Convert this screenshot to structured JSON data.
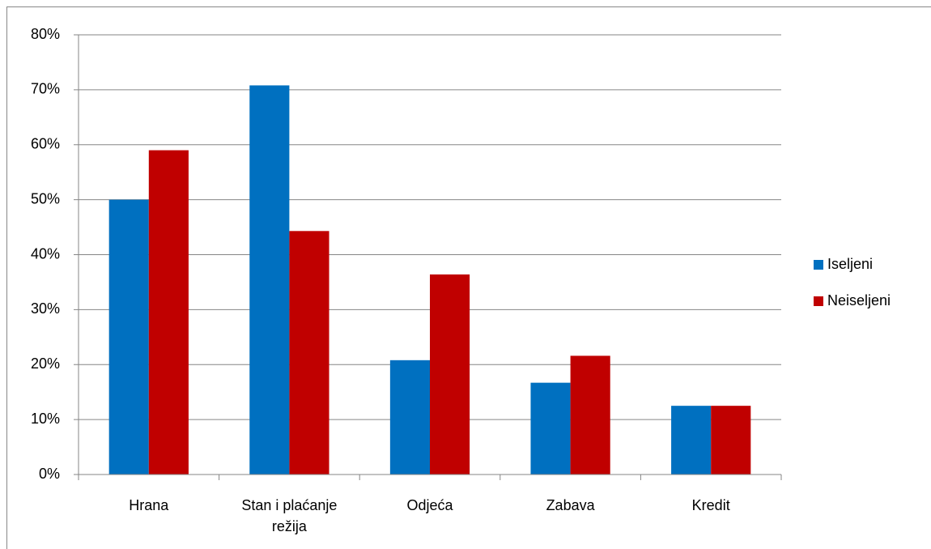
{
  "chart_data": {
    "type": "bar",
    "categories": [
      "Hrana",
      "Stan i plaćanje režija",
      "Odjeća",
      "Zabava",
      "Kredit"
    ],
    "series": [
      {
        "name": "Iseljeni",
        "color": "#0070c0",
        "values": [
          50,
          70.8,
          20.8,
          16.7,
          12.5
        ]
      },
      {
        "name": "Neiseljeni",
        "color": "#c00000",
        "values": [
          59,
          44.3,
          36.4,
          21.6,
          12.5
        ]
      }
    ],
    "ylim": [
      0,
      80
    ],
    "yticks": [
      {
        "value": 0,
        "label": "0%"
      },
      {
        "value": 10,
        "label": "10%"
      },
      {
        "value": 20,
        "label": "20%"
      },
      {
        "value": 30,
        "label": "30%"
      },
      {
        "value": 40,
        "label": "40%"
      },
      {
        "value": 50,
        "label": "50%"
      },
      {
        "value": 60,
        "label": "60%"
      },
      {
        "value": 70,
        "label": "70%"
      },
      {
        "value": 80,
        "label": "80%"
      }
    ],
    "grid": true,
    "legend": "right"
  }
}
